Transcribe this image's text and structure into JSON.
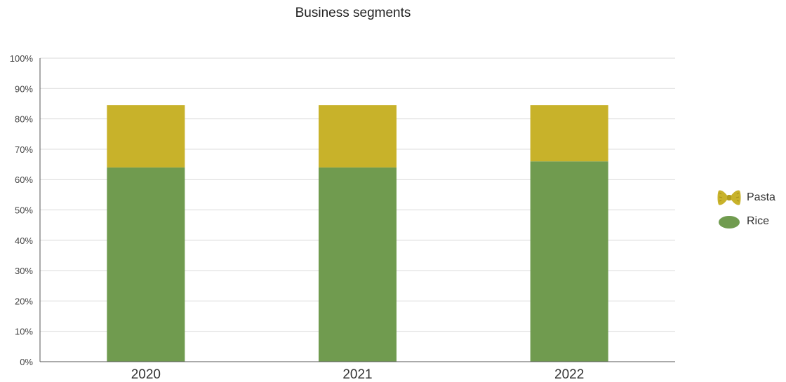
{
  "chart_data": {
    "type": "bar",
    "stacked": true,
    "title": "Business segments",
    "categories": [
      "2020",
      "2021",
      "2022"
    ],
    "y_ticks": [
      "0%",
      "10%",
      "20%",
      "30%",
      "40%",
      "50%",
      "60%",
      "70%",
      "80%",
      "90%",
      "100%"
    ],
    "ylim": [
      0,
      100
    ],
    "grid": true,
    "legend_position": "right",
    "series": [
      {
        "name": "Rice",
        "values": [
          64,
          64,
          66
        ],
        "color": "#709b4f",
        "icon": "rice-grain-icon"
      },
      {
        "name": "Pasta",
        "values": [
          20.5,
          20.5,
          18.5
        ],
        "color": "#c8b22a",
        "icon": "farfalle-pasta-icon"
      }
    ]
  }
}
